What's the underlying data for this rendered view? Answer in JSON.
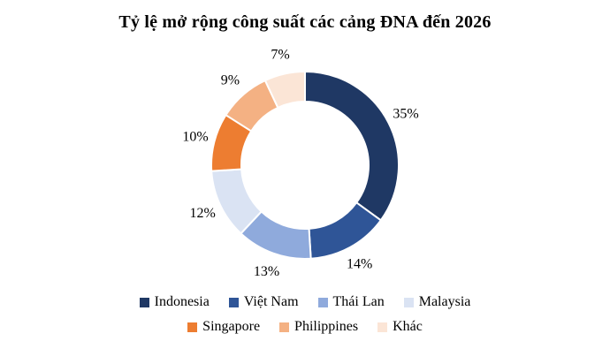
{
  "title": "Tỷ lệ mở rộng công suất các cảng ĐNA đến 2026",
  "chart_data": {
    "type": "pie",
    "subtype": "donut",
    "title": "Tỷ lệ mở rộng công suất các cảng ĐNA đến 2026",
    "categories": [
      "Indonesia",
      "Việt Nam",
      "Thái Lan",
      "Malaysia",
      "Singapore",
      "Philippines",
      "Khác"
    ],
    "values": [
      35,
      14,
      13,
      12,
      10,
      9,
      7
    ],
    "data_labels": [
      "35%",
      "14%",
      "13%",
      "12%",
      "10%",
      "9%",
      "7%"
    ],
    "colors": [
      "#1F3864",
      "#2F5597",
      "#8FAADC",
      "#DAE3F3",
      "#ED7D31",
      "#F4B183",
      "#FBE5D6"
    ],
    "start_angle_deg": 0,
    "direction": "clockwise",
    "legend_position": "bottom",
    "legend_rows": [
      [
        0,
        1,
        2,
        3
      ],
      [
        4,
        5,
        6
      ]
    ],
    "slice_border_color": "#FFFFFF"
  }
}
